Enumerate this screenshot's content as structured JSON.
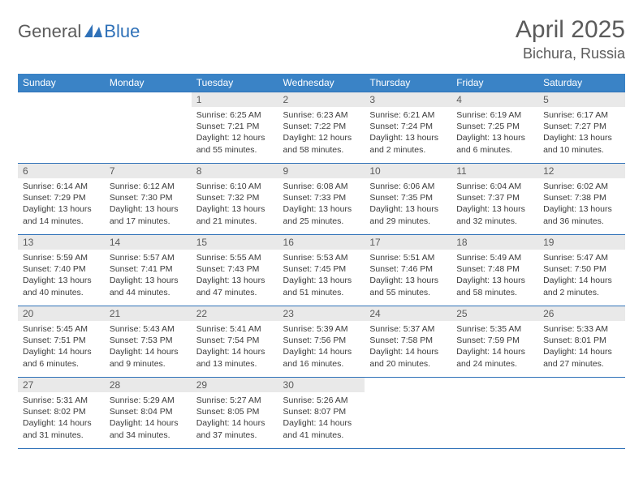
{
  "brand": {
    "general": "General",
    "blue": "Blue"
  },
  "title": "April 2025",
  "location": "Bichura, Russia",
  "colors": {
    "headerBg": "#3a83c6",
    "headerText": "#ffffff",
    "dayNumBg": "#e9e9e9",
    "bodyText": "#3b3b3b",
    "mutedText": "#5b5b5b",
    "rule": "#2f71b8",
    "pageBg": "#ffffff"
  },
  "typography": {
    "monthTitleSize": 30,
    "locationSize": 18,
    "dayHeaderSize": 12,
    "bodySize": 10.5
  },
  "weekdays": [
    "Sunday",
    "Monday",
    "Tuesday",
    "Wednesday",
    "Thursday",
    "Friday",
    "Saturday"
  ],
  "calendar": {
    "rows": [
      [
        null,
        null,
        {
          "n": "1",
          "sr": "6:25 AM",
          "ss": "7:21 PM",
          "dl": "12 hours and 55 minutes."
        },
        {
          "n": "2",
          "sr": "6:23 AM",
          "ss": "7:22 PM",
          "dl": "12 hours and 58 minutes."
        },
        {
          "n": "3",
          "sr": "6:21 AM",
          "ss": "7:24 PM",
          "dl": "13 hours and 2 minutes."
        },
        {
          "n": "4",
          "sr": "6:19 AM",
          "ss": "7:25 PM",
          "dl": "13 hours and 6 minutes."
        },
        {
          "n": "5",
          "sr": "6:17 AM",
          "ss": "7:27 PM",
          "dl": "13 hours and 10 minutes."
        }
      ],
      [
        {
          "n": "6",
          "sr": "6:14 AM",
          "ss": "7:29 PM",
          "dl": "13 hours and 14 minutes."
        },
        {
          "n": "7",
          "sr": "6:12 AM",
          "ss": "7:30 PM",
          "dl": "13 hours and 17 minutes."
        },
        {
          "n": "8",
          "sr": "6:10 AM",
          "ss": "7:32 PM",
          "dl": "13 hours and 21 minutes."
        },
        {
          "n": "9",
          "sr": "6:08 AM",
          "ss": "7:33 PM",
          "dl": "13 hours and 25 minutes."
        },
        {
          "n": "10",
          "sr": "6:06 AM",
          "ss": "7:35 PM",
          "dl": "13 hours and 29 minutes."
        },
        {
          "n": "11",
          "sr": "6:04 AM",
          "ss": "7:37 PM",
          "dl": "13 hours and 32 minutes."
        },
        {
          "n": "12",
          "sr": "6:02 AM",
          "ss": "7:38 PM",
          "dl": "13 hours and 36 minutes."
        }
      ],
      [
        {
          "n": "13",
          "sr": "5:59 AM",
          "ss": "7:40 PM",
          "dl": "13 hours and 40 minutes."
        },
        {
          "n": "14",
          "sr": "5:57 AM",
          "ss": "7:41 PM",
          "dl": "13 hours and 44 minutes."
        },
        {
          "n": "15",
          "sr": "5:55 AM",
          "ss": "7:43 PM",
          "dl": "13 hours and 47 minutes."
        },
        {
          "n": "16",
          "sr": "5:53 AM",
          "ss": "7:45 PM",
          "dl": "13 hours and 51 minutes."
        },
        {
          "n": "17",
          "sr": "5:51 AM",
          "ss": "7:46 PM",
          "dl": "13 hours and 55 minutes."
        },
        {
          "n": "18",
          "sr": "5:49 AM",
          "ss": "7:48 PM",
          "dl": "13 hours and 58 minutes."
        },
        {
          "n": "19",
          "sr": "5:47 AM",
          "ss": "7:50 PM",
          "dl": "14 hours and 2 minutes."
        }
      ],
      [
        {
          "n": "20",
          "sr": "5:45 AM",
          "ss": "7:51 PM",
          "dl": "14 hours and 6 minutes."
        },
        {
          "n": "21",
          "sr": "5:43 AM",
          "ss": "7:53 PM",
          "dl": "14 hours and 9 minutes."
        },
        {
          "n": "22",
          "sr": "5:41 AM",
          "ss": "7:54 PM",
          "dl": "14 hours and 13 minutes."
        },
        {
          "n": "23",
          "sr": "5:39 AM",
          "ss": "7:56 PM",
          "dl": "14 hours and 16 minutes."
        },
        {
          "n": "24",
          "sr": "5:37 AM",
          "ss": "7:58 PM",
          "dl": "14 hours and 20 minutes."
        },
        {
          "n": "25",
          "sr": "5:35 AM",
          "ss": "7:59 PM",
          "dl": "14 hours and 24 minutes."
        },
        {
          "n": "26",
          "sr": "5:33 AM",
          "ss": "8:01 PM",
          "dl": "14 hours and 27 minutes."
        }
      ],
      [
        {
          "n": "27",
          "sr": "5:31 AM",
          "ss": "8:02 PM",
          "dl": "14 hours and 31 minutes."
        },
        {
          "n": "28",
          "sr": "5:29 AM",
          "ss": "8:04 PM",
          "dl": "14 hours and 34 minutes."
        },
        {
          "n": "29",
          "sr": "5:27 AM",
          "ss": "8:05 PM",
          "dl": "14 hours and 37 minutes."
        },
        {
          "n": "30",
          "sr": "5:26 AM",
          "ss": "8:07 PM",
          "dl": "14 hours and 41 minutes."
        },
        null,
        null,
        null
      ]
    ]
  },
  "labels": {
    "sunrise": "Sunrise:",
    "sunset": "Sunset:",
    "daylight": "Daylight:"
  }
}
